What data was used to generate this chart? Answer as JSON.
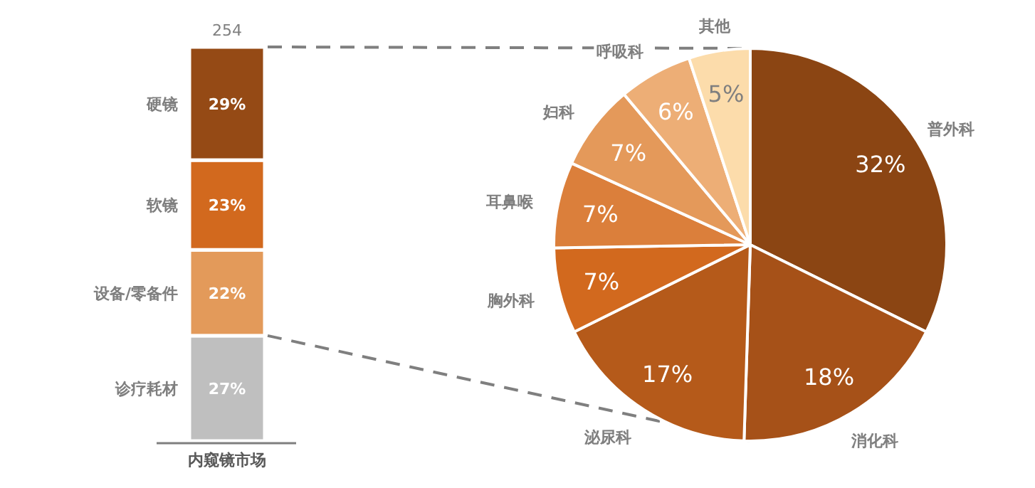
{
  "chart_data": [
    {
      "type": "bar",
      "stacked": true,
      "categories": [
        "内窥镜市场"
      ],
      "annotations": [
        "254"
      ],
      "series": [
        {
          "name": "诊疗耗材",
          "color": "#bfbfbf",
          "values": [
            27
          ],
          "value_labels": [
            "27%"
          ]
        },
        {
          "name": "设备/零备件",
          "color": "#e39a5a",
          "values": [
            22
          ],
          "value_labels": [
            "22%"
          ]
        },
        {
          "name": "软镜",
          "color": "#d2691e",
          "values": [
            23
          ],
          "value_labels": [
            "23%"
          ]
        },
        {
          "name": "硬镜",
          "color": "#954a15",
          "values": [
            29
          ],
          "value_labels": [
            "29%"
          ]
        }
      ]
    },
    {
      "type": "pie",
      "categories": [
        "普外科",
        "消化科",
        "泌尿科",
        "胸外科",
        "耳鼻喉",
        "妇科",
        "呼吸科",
        "其他"
      ],
      "values": [
        32,
        18,
        17,
        7,
        7,
        7,
        6,
        5
      ],
      "value_labels": [
        "32%",
        "18%",
        "17%",
        "7%",
        "7%",
        "7%",
        "6%",
        "5%"
      ],
      "colors": [
        "#8b4513",
        "#a65118",
        "#b55a1a",
        "#d2691e",
        "#db7f3b",
        "#e4995a",
        "#edae76",
        "#fcdcab"
      ]
    }
  ]
}
